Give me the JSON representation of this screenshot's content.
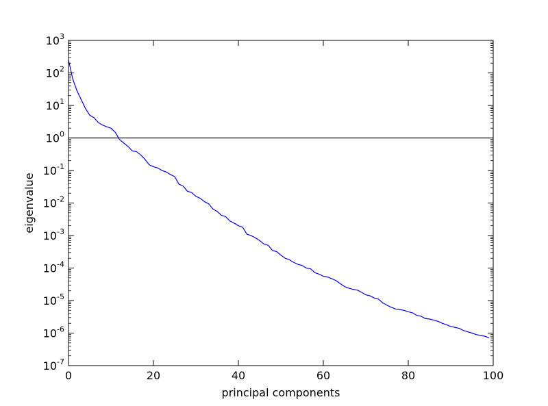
{
  "chart_data": {
    "type": "line",
    "title": "",
    "xlabel": "principal components",
    "ylabel": "eigenvalue",
    "xlim": [
      0,
      100
    ],
    "ylim_log10": [
      -7,
      3
    ],
    "y_scale": "log",
    "grid": false,
    "x_ticks": [
      {
        "value": 0,
        "label": "0"
      },
      {
        "value": 20,
        "label": "20"
      },
      {
        "value": 40,
        "label": "40"
      },
      {
        "value": 60,
        "label": "60"
      },
      {
        "value": 80,
        "label": "80"
      },
      {
        "value": 100,
        "label": "100"
      }
    ],
    "y_ticks": [
      {
        "exp": 3,
        "base": "10",
        "sup": "3"
      },
      {
        "exp": 2,
        "base": "10",
        "sup": "2"
      },
      {
        "exp": 1,
        "base": "10",
        "sup": "1"
      },
      {
        "exp": 0,
        "base": "10",
        "sup": "0"
      },
      {
        "exp": -1,
        "base": "10",
        "sup": "-1"
      },
      {
        "exp": -2,
        "base": "10",
        "sup": "-2"
      },
      {
        "exp": -3,
        "base": "10",
        "sup": "-3"
      },
      {
        "exp": -4,
        "base": "10",
        "sup": "-4"
      },
      {
        "exp": -5,
        "base": "10",
        "sup": "-5"
      },
      {
        "exp": -6,
        "base": "10",
        "sup": "-6"
      },
      {
        "exp": -7,
        "base": "10",
        "sup": "-7"
      }
    ],
    "reference_line": {
      "y": 1,
      "color": "#000000"
    },
    "series": [
      {
        "color": "#0000ff",
        "x": [
          0,
          1,
          2,
          3,
          4,
          5,
          6,
          7,
          8,
          9,
          10,
          11,
          12,
          13,
          14,
          15,
          16,
          17,
          18,
          19,
          20,
          21,
          22,
          23,
          24,
          25,
          26,
          27,
          28,
          29,
          30,
          31,
          32,
          33,
          34,
          35,
          36,
          37,
          38,
          39,
          40,
          41,
          42,
          43,
          44,
          45,
          46,
          47,
          48,
          49,
          50,
          51,
          52,
          53,
          54,
          55,
          56,
          57,
          58,
          59,
          60,
          61,
          62,
          63,
          64,
          65,
          66,
          67,
          68,
          69,
          70,
          71,
          72,
          73,
          74,
          75,
          76,
          77,
          78,
          79,
          80,
          81,
          82,
          83,
          84,
          85,
          86,
          87,
          88,
          89,
          90,
          91,
          92,
          93,
          94,
          95,
          96,
          97,
          98,
          99
        ],
        "y": [
          250,
          65,
          28,
          15,
          8,
          5,
          4.2,
          3,
          2.5,
          2.2,
          2,
          1.5,
          0.9,
          0.7,
          0.55,
          0.4,
          0.38,
          0.3,
          0.22,
          0.15,
          0.13,
          0.12,
          0.1,
          0.09,
          0.075,
          0.065,
          0.038,
          0.033,
          0.023,
          0.021,
          0.016,
          0.014,
          0.011,
          0.0095,
          0.0065,
          0.0055,
          0.0042,
          0.0038,
          0.0028,
          0.0024,
          0.002,
          0.0018,
          0.0011,
          0.001,
          0.00085,
          0.0007,
          0.00055,
          0.0005,
          0.00035,
          0.00032,
          0.00025,
          0.0002,
          0.00018,
          0.00015,
          0.00013,
          0.00012,
          0.0001,
          9.5e-05,
          7.2e-05,
          6.5e-05,
          5.6e-05,
          5.3e-05,
          4.7e-05,
          4.1e-05,
          3.3e-05,
          2.7e-05,
          2.4e-05,
          2.2e-05,
          2.1e-05,
          1.8e-05,
          1.5e-05,
          1.4e-05,
          1.2e-05,
          1.1e-05,
          8.5e-06,
          7.2e-06,
          6.2e-06,
          5.5e-06,
          5.3e-06,
          5e-06,
          4.5e-06,
          4.2e-06,
          3.5e-06,
          3.3e-06,
          2.8e-06,
          2.7e-06,
          2.5e-06,
          2.3e-06,
          2e-06,
          1.8e-06,
          1.6e-06,
          1.5e-06,
          1.4e-06,
          1.2e-06,
          1.1e-06,
          1e-06,
          9e-07,
          8.5e-07,
          8e-07,
          7.2e-07
        ]
      }
    ]
  }
}
